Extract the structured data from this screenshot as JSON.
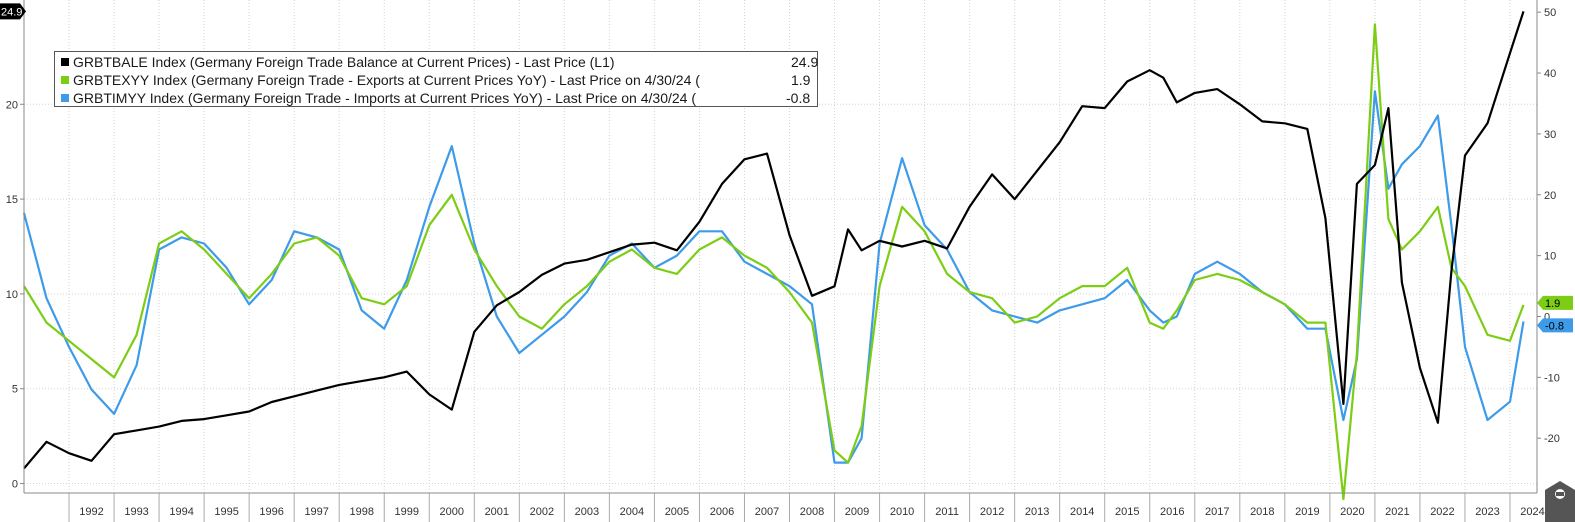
{
  "chart_data": {
    "type": "line",
    "x_range": [
      1991,
      2024.6
    ],
    "left_axis": {
      "ylim": [
        -0.5,
        25.5
      ],
      "ticks": [
        0,
        5,
        10,
        15,
        20
      ]
    },
    "right_axis": {
      "ylim": [
        -29,
        52
      ],
      "ticks": [
        -20,
        -10,
        0,
        10,
        20,
        30,
        40,
        50
      ]
    },
    "year_labels": [
      "1992",
      "1993",
      "1994",
      "1995",
      "1996",
      "1997",
      "1998",
      "1999",
      "2000",
      "2001",
      "2002",
      "2003",
      "2004",
      "2005",
      "2006",
      "2007",
      "2008",
      "2009",
      "2010",
      "2011",
      "2012",
      "2013",
      "2014",
      "2015",
      "2016",
      "2017",
      "2018",
      "2019",
      "2020",
      "2021",
      "2022",
      "2023",
      "2024"
    ],
    "grid": true,
    "legend_position": "top-left",
    "series": [
      {
        "name": "GRBTBALE Index (Germany Foreign Trade Balance at Current Prices) - Last Price (L1)",
        "last_value": "24.9",
        "color": "#000000",
        "axis": "left",
        "x": [
          1991.0,
          1991.5,
          1992.0,
          1992.5,
          1993.0,
          1993.5,
          1994.0,
          1994.5,
          1995.0,
          1995.5,
          1996.0,
          1996.5,
          1997.0,
          1997.5,
          1998.0,
          1998.5,
          1999.0,
          1999.5,
          2000.0,
          2000.5,
          2001.0,
          2001.5,
          2002.0,
          2002.5,
          2003.0,
          2003.5,
          2004.0,
          2004.5,
          2005.0,
          2005.5,
          2006.0,
          2006.5,
          2007.0,
          2007.5,
          2008.0,
          2008.5,
          2009.0,
          2009.3,
          2009.6,
          2010.0,
          2010.5,
          2011.0,
          2011.5,
          2012.0,
          2012.5,
          2013.0,
          2013.5,
          2014.0,
          2014.5,
          2015.0,
          2015.5,
          2016.0,
          2016.3,
          2016.6,
          2017.0,
          2017.5,
          2018.0,
          2018.5,
          2019.0,
          2019.5,
          2019.9,
          2020.3,
          2020.6,
          2021.0,
          2021.3,
          2021.6,
          2022.0,
          2022.4,
          2022.7,
          2023.0,
          2023.5,
          2024.0,
          2024.3
        ],
        "values": [
          0.8,
          2.2,
          1.6,
          1.2,
          2.6,
          2.8,
          3.0,
          3.3,
          3.4,
          3.6,
          3.8,
          4.3,
          4.6,
          4.9,
          5.2,
          5.4,
          5.6,
          5.9,
          4.7,
          3.9,
          8.0,
          9.4,
          10.1,
          11.0,
          11.6,
          11.8,
          12.2,
          12.6,
          12.7,
          12.3,
          13.8,
          15.8,
          17.1,
          17.4,
          13.1,
          9.9,
          10.4,
          13.4,
          12.3,
          12.8,
          12.5,
          12.8,
          12.4,
          14.6,
          16.3,
          15.0,
          16.5,
          18.0,
          19.9,
          19.8,
          21.2,
          21.8,
          21.4,
          20.1,
          20.6,
          20.8,
          20.0,
          19.1,
          19.0,
          18.7,
          14.0,
          4.2,
          15.8,
          16.8,
          19.8,
          10.6,
          6.1,
          3.2,
          11.2,
          17.3,
          19.0,
          22.7,
          24.9
        ]
      },
      {
        "name": "GRBTEXYY Index (Germany Foreign Trade - Exports at Current Prices YoY) - Last Price on 4/30/24 (",
        "last_value": "1.9",
        "color": "#7ccd14",
        "axis": "right",
        "x": [
          1991.0,
          1991.5,
          1992.0,
          1992.5,
          1993.0,
          1993.5,
          1994.0,
          1994.5,
          1995.0,
          1995.5,
          1996.0,
          1996.5,
          1997.0,
          1997.5,
          1998.0,
          1998.5,
          1999.0,
          1999.5,
          2000.0,
          2000.5,
          2001.0,
          2001.5,
          2002.0,
          2002.5,
          2003.0,
          2003.5,
          2004.0,
          2004.5,
          2005.0,
          2005.5,
          2006.0,
          2006.5,
          2007.0,
          2007.5,
          2008.0,
          2008.5,
          2009.0,
          2009.3,
          2009.6,
          2010.0,
          2010.5,
          2011.0,
          2011.5,
          2012.0,
          2012.5,
          2013.0,
          2013.5,
          2014.0,
          2014.5,
          2015.0,
          2015.5,
          2016.0,
          2016.3,
          2016.6,
          2017.0,
          2017.5,
          2018.0,
          2018.5,
          2019.0,
          2019.5,
          2019.9,
          2020.3,
          2020.6,
          2021.0,
          2021.3,
          2021.6,
          2022.0,
          2022.4,
          2022.7,
          2023.0,
          2023.5,
          2024.0,
          2024.3
        ],
        "values": [
          5,
          -1,
          -4,
          -7,
          -10,
          -3,
          12,
          14,
          11,
          7,
          3,
          7,
          12,
          13,
          10,
          3,
          2,
          5,
          15,
          20,
          11,
          5,
          0,
          -2,
          2,
          5,
          9,
          11,
          8,
          7,
          11,
          13,
          10,
          8,
          4,
          -1,
          -22,
          -24,
          -18,
          5,
          18,
          14,
          7,
          4,
          3,
          -1,
          0,
          3,
          5,
          5,
          8,
          -1,
          -2,
          1,
          6,
          7,
          6,
          4,
          2,
          -1,
          -1,
          -30,
          -6,
          48,
          16,
          11,
          14,
          18,
          8,
          5,
          -3,
          -4,
          1.9
        ]
      },
      {
        "name": "GRBTIMYY Index (Germany Foreign Trade - Imports at Current Prices YoY) - Last Price on 4/30/24 (",
        "last_value": "-0.8",
        "color": "#3d9be9",
        "axis": "right",
        "x": [
          1991.0,
          1991.5,
          1992.0,
          1992.5,
          1993.0,
          1993.5,
          1994.0,
          1994.5,
          1995.0,
          1995.5,
          1996.0,
          1996.5,
          1997.0,
          1997.5,
          1998.0,
          1998.5,
          1999.0,
          1999.5,
          2000.0,
          2000.5,
          2001.0,
          2001.5,
          2002.0,
          2002.5,
          2003.0,
          2003.5,
          2004.0,
          2004.5,
          2005.0,
          2005.5,
          2006.0,
          2006.5,
          2007.0,
          2007.5,
          2008.0,
          2008.5,
          2009.0,
          2009.3,
          2009.6,
          2010.0,
          2010.5,
          2011.0,
          2011.5,
          2012.0,
          2012.5,
          2013.0,
          2013.5,
          2014.0,
          2014.5,
          2015.0,
          2015.5,
          2016.0,
          2016.3,
          2016.6,
          2017.0,
          2017.5,
          2018.0,
          2018.5,
          2019.0,
          2019.5,
          2019.9,
          2020.3,
          2020.6,
          2021.0,
          2021.3,
          2021.6,
          2022.0,
          2022.4,
          2022.7,
          2023.0,
          2023.5,
          2024.0,
          2024.3
        ],
        "values": [
          17,
          3,
          -5,
          -12,
          -16,
          -8,
          11,
          13,
          12,
          8,
          2,
          6,
          14,
          13,
          11,
          1,
          -2,
          6,
          18,
          28,
          12,
          0,
          -6,
          -3,
          0,
          4,
          10,
          12,
          8,
          10,
          14,
          14,
          9,
          7,
          5,
          2,
          -24,
          -24,
          -20,
          12,
          26,
          15,
          11,
          4,
          1,
          0,
          -1,
          1,
          2,
          3,
          6,
          1,
          -1,
          0,
          7,
          9,
          7,
          4,
          2,
          -2,
          -2,
          -17,
          -7,
          37,
          21,
          25,
          28,
          33,
          15,
          -5,
          -17,
          -14,
          -0.8
        ]
      }
    ]
  },
  "tags": {
    "left_current": "24.9",
    "exports_current": "1.9",
    "imports_current": "-0.8"
  }
}
